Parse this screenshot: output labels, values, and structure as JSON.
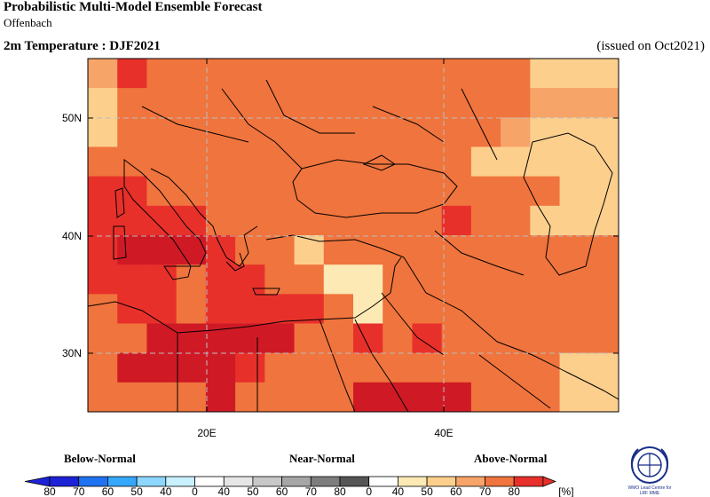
{
  "header": {
    "title": "Probabilistic Multi-Model Ensemble Forecast",
    "centre": "Offenbach",
    "variable": "2m Temperature : DJF2021",
    "issued": "(issued on Oct2021)"
  },
  "map": {
    "lat_labels": [
      "50N",
      "40N",
      "30N"
    ],
    "lon_labels": [
      "20E",
      "40E"
    ],
    "colors": {
      "above_40": "#fde9b4",
      "above_50": "#fdcf8d",
      "above_60": "#f7a468",
      "above_70": "#f0743d",
      "above_80": "#e8302b",
      "above_90": "#cf1a26",
      "near_40": "#e6e6e6",
      "near_50": "#c8c8c8",
      "below": "#ffffff"
    }
  },
  "legend": {
    "below_label": "Below-Normal",
    "near_label": "Near-Normal",
    "above_label": "Above-Normal",
    "below_ticks": [
      "80",
      "70",
      "60",
      "50",
      "40"
    ],
    "near_ticks": [
      "0",
      "40",
      "50",
      "60",
      "70",
      "80"
    ],
    "above_ticks": [
      "0",
      "40",
      "50",
      "60",
      "70",
      "80"
    ],
    "unit": "[%]",
    "below_colors": [
      "#1e22d6",
      "#1f72f0",
      "#36a8fb",
      "#8dd6fd",
      "#c8f0ff"
    ],
    "near_colors": [
      "#e6e6e6",
      "#c8c8c8",
      "#a6a6a6",
      "#7d7d7d",
      "#555555"
    ],
    "above_colors": [
      "#fde9b4",
      "#fdcf8d",
      "#f7a468",
      "#f0743d",
      "#e8302b"
    ]
  },
  "logo": {
    "text_line1": "WMO Lead Centre for",
    "text_line2": "LRF MME"
  }
}
